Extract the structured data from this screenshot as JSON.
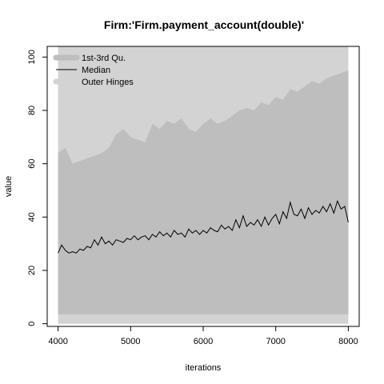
{
  "chart_data": {
    "type": "area",
    "title": "Firm:'Firm.payment_account(double)'",
    "xlabel": "iterations",
    "ylabel": "value",
    "xlim": [
      3850,
      8150
    ],
    "ylim": [
      -1,
      104
    ],
    "xticks": [
      4000,
      5000,
      6000,
      7000,
      8000
    ],
    "yticks": [
      0,
      20,
      40,
      60,
      80,
      100
    ],
    "grid": false,
    "legend_position": "top-left",
    "colors": {
      "outer_hinges": "#d3d3d3",
      "iqr": "#bebebe",
      "median": "#000000",
      "axis": "#000000"
    },
    "legend": [
      {
        "label": "1st-3rd Qu.",
        "kind": "band",
        "color": "#bebebe"
      },
      {
        "label": "Median",
        "kind": "line",
        "color": "#000000"
      },
      {
        "label": "Outer Hinges",
        "kind": "band",
        "color": "#d3d3d3"
      }
    ],
    "series": [
      {
        "name": "Outer Hinges",
        "x": [
          4000,
          8000
        ],
        "lower": [
          0,
          0
        ],
        "upper": [
          104,
          104
        ]
      },
      {
        "name": "1st-3rd Qu.",
        "x": [
          4000,
          4100,
          4200,
          4300,
          4400,
          4500,
          4600,
          4700,
          4800,
          4900,
          5000,
          5100,
          5200,
          5300,
          5400,
          5500,
          5600,
          5700,
          5800,
          5900,
          6000,
          6100,
          6200,
          6300,
          6400,
          6500,
          6600,
          6700,
          6800,
          6900,
          7000,
          7100,
          7200,
          7300,
          7400,
          7500,
          7600,
          7700,
          7800,
          7900,
          8000
        ],
        "lower": [
          3.5,
          3.5,
          3.5,
          3.5,
          3.5,
          3.5,
          3.5,
          3.5,
          3.5,
          3.5,
          3.5,
          3.5,
          3.5,
          3.5,
          3.5,
          3.5,
          3.5,
          3.5,
          3.5,
          3.5,
          3.5,
          3.5,
          3.5,
          3.5,
          3.5,
          3.5,
          3.5,
          3.5,
          3.5,
          3.5,
          3.5,
          3.5,
          3.5,
          3.5,
          3.5,
          3.5,
          3.5,
          3.5,
          3.5,
          3.5,
          3.5
        ],
        "upper": [
          64,
          66,
          60,
          61,
          62,
          63,
          64,
          66,
          71,
          73,
          70,
          69,
          68,
          75,
          73,
          76,
          75,
          77,
          73,
          72,
          75,
          77,
          75,
          76,
          78,
          80,
          81,
          80,
          83,
          82,
          85,
          84,
          88,
          87,
          89,
          91,
          90,
          92,
          93,
          94,
          95
        ]
      },
      {
        "name": "Median",
        "x": [
          4000,
          4050,
          4100,
          4150,
          4200,
          4250,
          4300,
          4350,
          4400,
          4450,
          4500,
          4550,
          4600,
          4650,
          4700,
          4750,
          4800,
          4850,
          4900,
          4950,
          5000,
          5050,
          5100,
          5150,
          5200,
          5250,
          5300,
          5350,
          5400,
          5450,
          5500,
          5550,
          5600,
          5650,
          5700,
          5750,
          5800,
          5850,
          5900,
          5950,
          6000,
          6050,
          6100,
          6150,
          6200,
          6250,
          6300,
          6350,
          6400,
          6450,
          6500,
          6550,
          6600,
          6650,
          6700,
          6750,
          6800,
          6850,
          6900,
          6950,
          7000,
          7050,
          7100,
          7150,
          7200,
          7250,
          7300,
          7350,
          7400,
          7450,
          7500,
          7550,
          7600,
          7650,
          7700,
          7750,
          7800,
          7850,
          7900,
          7950,
          8000
        ],
        "values": [
          26.5,
          29.5,
          27.5,
          26.5,
          27,
          26.5,
          28,
          27.5,
          29,
          28.5,
          31.5,
          29.5,
          32.5,
          30,
          31,
          29.5,
          31.5,
          31,
          30.5,
          32,
          31.5,
          33,
          31.5,
          32.5,
          33,
          31.5,
          33.5,
          32.5,
          34.5,
          33,
          34,
          32.5,
          35,
          33.5,
          34,
          32.5,
          35.5,
          34,
          35,
          33.5,
          35,
          34,
          36,
          35,
          34.5,
          37,
          35.5,
          36.5,
          35,
          39,
          36,
          40.5,
          36.5,
          38,
          37,
          39,
          36.5,
          40,
          37,
          39.5,
          41,
          37.5,
          42,
          39.5,
          45.5,
          41,
          40.5,
          43,
          39.5,
          43.5,
          41,
          42.5,
          41.5,
          44,
          42,
          45,
          41.5,
          46,
          43,
          44,
          38
        ]
      }
    ]
  }
}
